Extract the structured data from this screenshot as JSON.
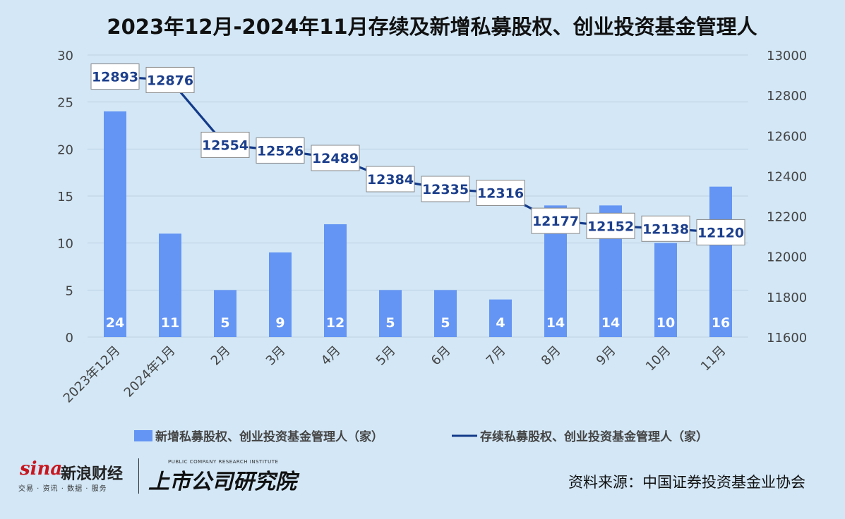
{
  "title": "2023年12月-2024年11月存续及新增私募股权、创业投资基金管理人",
  "chart_data": {
    "type": "bar",
    "categories": [
      "2023年12月",
      "2024年1月",
      "2月",
      "3月",
      "4月",
      "5月",
      "6月",
      "7月",
      "8月",
      "9月",
      "10月",
      "11月"
    ],
    "series": [
      {
        "name": "新增私募股权、创业投资基金管理人（家）",
        "type": "bar",
        "axis": "left",
        "color": "#6495f4",
        "values": [
          24,
          11,
          5,
          9,
          12,
          5,
          5,
          4,
          14,
          14,
          10,
          16
        ]
      },
      {
        "name": "存续私募股权、创业投资基金管理人（家）",
        "type": "line",
        "axis": "right",
        "color": "#143b8a",
        "values": [
          12893,
          12876,
          12554,
          12526,
          12489,
          12384,
          12335,
          12316,
          12177,
          12152,
          12138,
          12120
        ]
      }
    ],
    "y_left": {
      "min": 0,
      "max": 30,
      "ticks": [
        0,
        5,
        10,
        15,
        20,
        25,
        30
      ]
    },
    "y_right": {
      "min": 11600,
      "max": 13000,
      "ticks": [
        11600,
        11800,
        12000,
        12200,
        12400,
        12600,
        12800,
        13000
      ]
    },
    "grid": true,
    "legend": "bottom"
  },
  "footer": {
    "logo_sina": "sina",
    "brand_name": "新浪财经",
    "brand_sub": "交易 · 资讯 · 数据 · 服务",
    "institute_en": "PUBLIC COMPANY RESEARCH INSTITUTE",
    "institute_cn": "上市公司研究院",
    "source": "资料来源：中国证券投资基金业协会"
  }
}
